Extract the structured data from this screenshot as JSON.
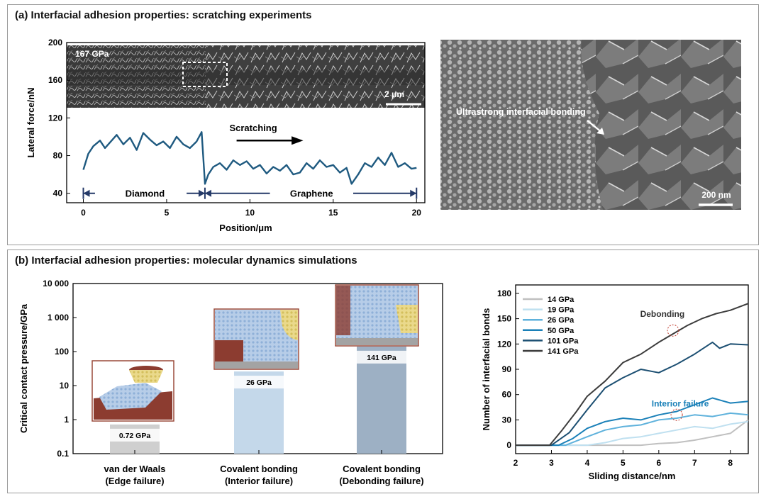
{
  "panel_a": {
    "title": "(a) Interfacial adhesion properties: scratching experiments",
    "micrograph": {
      "pressure_label": "167 GPa",
      "scale_label": "2 μm"
    },
    "sem": {
      "annotation": "Ultrastrong interfacial bonding",
      "scale_label": "200 nm"
    }
  },
  "panel_b": {
    "title": "(b) Interfacial adhesion properties: molecular dynamics simulations"
  },
  "chart_data": [
    {
      "type": "line",
      "xlabel": "Position/μm",
      "ylabel": "Lateral force/nN",
      "xlim": [
        -1,
        20.5
      ],
      "ylim": [
        30,
        200
      ],
      "xticks": [
        "0",
        "5",
        "10",
        "15",
        "20"
      ],
      "yticks": [
        "40",
        "80",
        "120",
        "160",
        "200"
      ],
      "annotations": {
        "direction": "Scratching",
        "region_left": "Diamond",
        "region_right": "Graphene"
      },
      "series": [
        {
          "x": [
            0,
            0.3,
            0.6,
            1,
            1.3,
            1.6,
            2,
            2.4,
            2.8,
            3.2,
            3.6,
            4,
            4.4,
            4.8,
            5.2,
            5.6,
            6,
            6.4,
            6.8,
            7.1,
            7.3,
            7.5,
            7.8,
            8.2,
            8.6,
            9,
            9.4,
            9.8,
            10.2,
            10.6,
            11,
            11.4,
            11.8,
            12.2,
            12.6,
            13,
            13.4,
            13.8,
            14.2,
            14.6,
            15,
            15.4,
            15.8,
            16.1,
            16.5,
            16.9,
            17.3,
            17.7,
            18.1,
            18.5,
            18.9,
            19.3,
            19.7,
            20
          ],
          "values": [
            65,
            82,
            90,
            96,
            88,
            94,
            102,
            92,
            99,
            86,
            104,
            97,
            91,
            95,
            88,
            100,
            92,
            88,
            95,
            105,
            50,
            60,
            68,
            72,
            65,
            75,
            70,
            74,
            66,
            70,
            61,
            68,
            64,
            70,
            60,
            62,
            72,
            66,
            75,
            68,
            70,
            62,
            67,
            50,
            60,
            72,
            68,
            78,
            70,
            83,
            68,
            72,
            66,
            67
          ]
        }
      ]
    },
    {
      "type": "bar",
      "ylabel": "Critical contact pressure/GPa",
      "yscale": "log",
      "ylim": [
        0.1,
        10000
      ],
      "yticks": [
        "0.1",
        "1",
        "10",
        "100",
        "1 000",
        "10 000"
      ],
      "categories": [
        "van der Waals (Edge failure)",
        "Covalent bonding (Interior failure)",
        "Covalent bonding (Debonding failure)"
      ],
      "category_lines": [
        [
          "van der Waals",
          "(Edge failure)"
        ],
        [
          "Covalent bonding",
          "(Interior failure)"
        ],
        [
          "Covalent bonding",
          "(Debonding failure)"
        ]
      ],
      "values": [
        0.72,
        26,
        141
      ],
      "value_labels": [
        "0.72 GPa",
        "26 GPa",
        "141 GPa"
      ],
      "colors": [
        "#cfcfcf",
        "#c4d8ea",
        "#9db0c4"
      ]
    },
    {
      "type": "line",
      "xlabel": "Sliding distance/nm",
      "ylabel": "Number of interfacial bonds",
      "xlim": [
        2,
        8.5
      ],
      "ylim": [
        -10,
        190
      ],
      "xticks": [
        "2",
        "3",
        "4",
        "5",
        "6",
        "7",
        "8"
      ],
      "yticks": [
        "0",
        "30",
        "60",
        "90",
        "120",
        "150",
        "180"
      ],
      "legend": "top-left",
      "annotations": {
        "debonding": "Debonding",
        "interior_failure": "Interior failure"
      },
      "series": [
        {
          "name": "14 GPa",
          "color": "#c0c0c0",
          "x": [
            2,
            4.6,
            5,
            5.5,
            6,
            6.5,
            7,
            7.5,
            8,
            8.5
          ],
          "values": [
            0,
            0,
            0,
            0,
            2,
            3,
            6,
            10,
            14,
            30
          ]
        },
        {
          "name": "19 GPa",
          "color": "#bfe0f0",
          "x": [
            2,
            4,
            4.5,
            5,
            5.5,
            6,
            6.5,
            7,
            7.5,
            8,
            8.5
          ],
          "values": [
            0,
            0,
            3,
            8,
            10,
            14,
            18,
            22,
            20,
            25,
            28
          ]
        },
        {
          "name": "26 GPa",
          "color": "#5fb2dc",
          "x": [
            2,
            3.4,
            4,
            4.5,
            5,
            5.5,
            6,
            6.5,
            7,
            7.5,
            8,
            8.5
          ],
          "values": [
            0,
            0,
            10,
            18,
            22,
            24,
            30,
            32,
            36,
            34,
            38,
            36
          ]
        },
        {
          "name": "50 GPa",
          "color": "#1a80b8",
          "x": [
            2,
            3.2,
            3.6,
            4,
            4.5,
            5,
            5.5,
            6,
            6.5,
            7,
            7.5,
            8,
            8.5
          ],
          "values": [
            0,
            0,
            8,
            20,
            28,
            32,
            30,
            36,
            40,
            48,
            56,
            50,
            52
          ]
        },
        {
          "name": "101 GPa",
          "color": "#1c4f72",
          "x": [
            2,
            3,
            3.5,
            4,
            4.5,
            5,
            5.5,
            6,
            6.5,
            7,
            7.5,
            7.7,
            8,
            8.5
          ],
          "values": [
            0,
            0,
            15,
            42,
            68,
            80,
            90,
            86,
            96,
            108,
            122,
            115,
            120,
            119
          ]
        },
        {
          "name": "141 GPa",
          "color": "#3c3c3c",
          "x": [
            2,
            2.95,
            3.3,
            3.7,
            4,
            4.5,
            5,
            5.5,
            6,
            6.4,
            6.8,
            7.2,
            7.6,
            8,
            8.5
          ],
          "values": [
            0,
            0,
            18,
            40,
            58,
            76,
            98,
            108,
            122,
            132,
            142,
            150,
            156,
            160,
            168
          ]
        }
      ]
    }
  ]
}
